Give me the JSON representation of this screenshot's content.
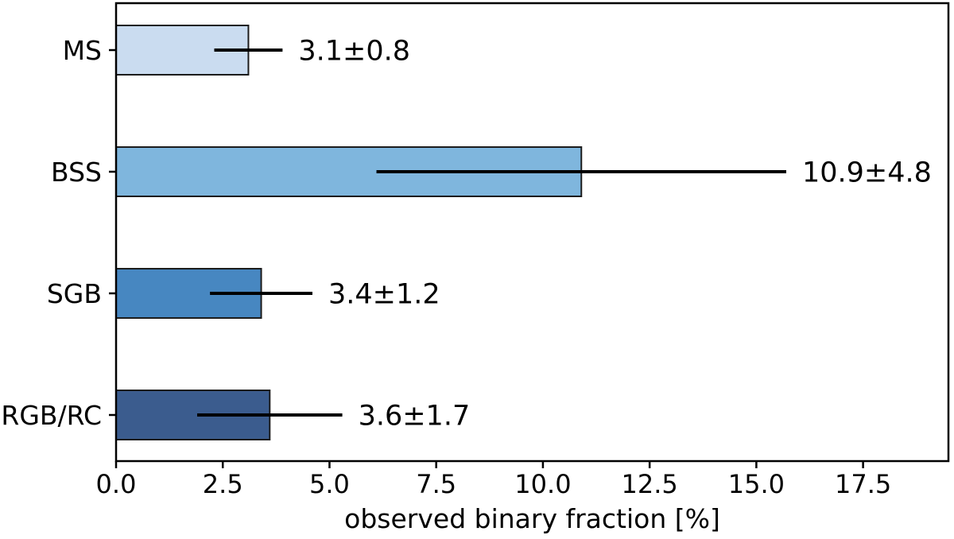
{
  "figure": {
    "background": "#ffffff"
  },
  "chart_data": {
    "type": "bar",
    "orientation": "horizontal",
    "title": "",
    "xlabel": "observed binary fraction [%]",
    "ylabel": "",
    "categories": [
      "MS",
      "BSS",
      "SGB",
      "RGB/RC"
    ],
    "values": [
      3.1,
      10.9,
      3.4,
      3.6
    ],
    "errors": [
      0.8,
      4.8,
      1.2,
      1.7
    ],
    "value_labels": [
      "3.1±0.8",
      "10.9±4.8",
      "3.4±1.2",
      "3.6±1.7"
    ],
    "bar_colors": [
      "#cadcf0",
      "#7fb6dd",
      "#4787c1",
      "#3b5c8e"
    ],
    "bar_edge_color": "#1c1c1c",
    "error_bar_color": "#000000",
    "axis_color": "#000000",
    "text_color": "#000000",
    "xlim": [
      0,
      19.5
    ],
    "xticks": [
      0.0,
      2.5,
      5.0,
      7.5,
      10.0,
      12.5,
      15.0,
      17.5
    ],
    "xtick_labels": [
      "0.0",
      "2.5",
      "5.0",
      "7.5",
      "10.0",
      "12.5",
      "15.0",
      "17.5"
    ],
    "grid": false,
    "legend": false
  }
}
